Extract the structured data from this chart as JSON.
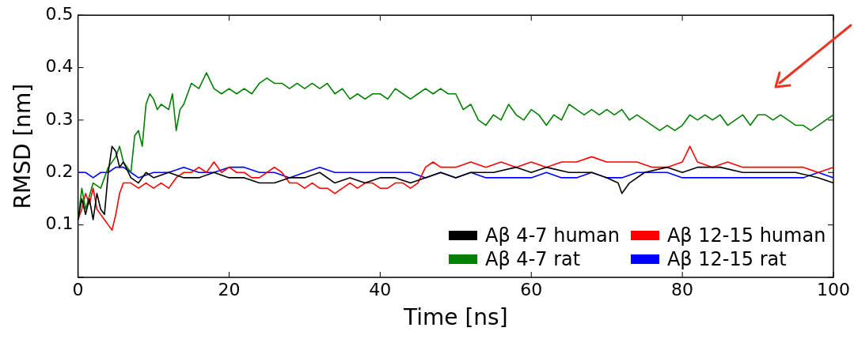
{
  "chart_data": {
    "type": "line",
    "xlabel": "Time [ns]",
    "ylabel": "RMSD [nm]",
    "xlim": [
      0,
      100
    ],
    "ylim": [
      0,
      0.5
    ],
    "xticks": [
      0,
      20,
      40,
      60,
      80,
      100
    ],
    "yticks": [
      {
        "value": 0,
        "label": null
      },
      0.1,
      0.2,
      0.3,
      0.4,
      0.5
    ],
    "grid": false,
    "legend": "bottom right",
    "marker": "none",
    "line_style": "solid",
    "series": [
      {
        "name": "Aβ 4-7 human",
        "color": "#000000",
        "x": [
          0,
          0.5,
          1,
          1.5,
          2,
          2.5,
          3,
          3.5,
          4,
          4.5,
          5,
          5.5,
          6,
          7,
          8,
          9,
          10,
          12,
          14,
          16,
          18,
          20,
          22,
          24,
          26,
          28,
          30,
          32,
          34,
          36,
          38,
          40,
          42,
          44,
          46,
          48,
          50,
          52,
          55,
          58,
          60,
          62,
          65,
          68,
          70,
          71.5,
          72,
          73,
          75,
          78,
          80,
          82,
          85,
          88,
          90,
          92,
          95,
          98,
          100
        ],
        "values": [
          0.11,
          0.15,
          0.12,
          0.15,
          0.11,
          0.16,
          0.13,
          0.12,
          0.2,
          0.25,
          0.24,
          0.21,
          0.22,
          0.19,
          0.18,
          0.2,
          0.19,
          0.2,
          0.19,
          0.19,
          0.2,
          0.19,
          0.19,
          0.18,
          0.18,
          0.19,
          0.19,
          0.2,
          0.18,
          0.19,
          0.18,
          0.19,
          0.19,
          0.18,
          0.19,
          0.2,
          0.19,
          0.2,
          0.2,
          0.21,
          0.2,
          0.21,
          0.2,
          0.2,
          0.19,
          0.18,
          0.16,
          0.18,
          0.2,
          0.21,
          0.2,
          0.21,
          0.21,
          0.2,
          0.2,
          0.2,
          0.2,
          0.19,
          0.18
        ]
      },
      {
        "name": "Aβ 4-7 rat",
        "color": "#007f00",
        "x": [
          0,
          0.5,
          1,
          2,
          3,
          4,
          5,
          5.5,
          6,
          7,
          7.5,
          8,
          8.5,
          9,
          9.5,
          10,
          10.5,
          11,
          12,
          12.5,
          13,
          13.5,
          14,
          15,
          16,
          17,
          18,
          19,
          20,
          21,
          22,
          23,
          24,
          25,
          26,
          27,
          28,
          29,
          30,
          31,
          32,
          33,
          34,
          35,
          36,
          37,
          38,
          39,
          40,
          41,
          42,
          43,
          44,
          45,
          46,
          47,
          48,
          49,
          50,
          51,
          52,
          53,
          54,
          55,
          56,
          57,
          58,
          59,
          60,
          61,
          62,
          63,
          64,
          65,
          66,
          67,
          68,
          69,
          70,
          71,
          72,
          73,
          74,
          75,
          76,
          77,
          78,
          79,
          80,
          81,
          82,
          83,
          84,
          85,
          86,
          87,
          88,
          89,
          90,
          91,
          92,
          93,
          94,
          95,
          96,
          97,
          98,
          99,
          100
        ],
        "values": [
          0.11,
          0.17,
          0.13,
          0.18,
          0.17,
          0.21,
          0.23,
          0.25,
          0.22,
          0.2,
          0.27,
          0.28,
          0.25,
          0.33,
          0.35,
          0.34,
          0.32,
          0.33,
          0.32,
          0.35,
          0.28,
          0.32,
          0.33,
          0.37,
          0.36,
          0.39,
          0.36,
          0.35,
          0.36,
          0.35,
          0.36,
          0.35,
          0.37,
          0.38,
          0.37,
          0.37,
          0.36,
          0.37,
          0.36,
          0.37,
          0.36,
          0.37,
          0.35,
          0.36,
          0.34,
          0.35,
          0.34,
          0.35,
          0.35,
          0.34,
          0.36,
          0.35,
          0.34,
          0.35,
          0.36,
          0.35,
          0.36,
          0.35,
          0.35,
          0.32,
          0.33,
          0.3,
          0.29,
          0.31,
          0.3,
          0.33,
          0.31,
          0.3,
          0.32,
          0.31,
          0.29,
          0.31,
          0.3,
          0.33,
          0.32,
          0.31,
          0.32,
          0.31,
          0.32,
          0.31,
          0.32,
          0.3,
          0.31,
          0.3,
          0.29,
          0.28,
          0.29,
          0.28,
          0.29,
          0.31,
          0.3,
          0.31,
          0.3,
          0.31,
          0.29,
          0.3,
          0.31,
          0.29,
          0.31,
          0.31,
          0.3,
          0.31,
          0.3,
          0.29,
          0.29,
          0.28,
          0.29,
          0.3,
          0.31
        ]
      },
      {
        "name": "Aβ 12-15 human",
        "color": "#ff0000",
        "x": [
          0,
          0.5,
          1,
          1.5,
          2,
          2.5,
          3,
          3.5,
          4,
          4.5,
          5,
          5.5,
          6,
          7,
          8,
          9,
          10,
          11,
          12,
          13,
          14,
          15,
          16,
          17,
          18,
          19,
          20,
          21,
          22,
          23,
          24,
          25,
          26,
          27,
          28,
          29,
          30,
          31,
          32,
          33,
          34,
          35,
          36,
          37,
          38,
          39,
          40,
          41,
          42,
          43,
          44,
          45,
          46,
          47,
          48,
          50,
          52,
          54,
          56,
          58,
          60,
          62,
          64,
          66,
          68,
          70,
          72,
          74,
          76,
          78,
          80,
          81,
          82,
          84,
          86,
          88,
          90,
          92,
          94,
          96,
          98,
          100
        ],
        "values": [
          0.11,
          0.13,
          0.16,
          0.14,
          0.17,
          0.13,
          0.12,
          0.11,
          0.1,
          0.09,
          0.12,
          0.16,
          0.18,
          0.18,
          0.17,
          0.18,
          0.17,
          0.18,
          0.17,
          0.19,
          0.2,
          0.2,
          0.21,
          0.2,
          0.22,
          0.2,
          0.21,
          0.2,
          0.2,
          0.19,
          0.19,
          0.2,
          0.21,
          0.2,
          0.18,
          0.18,
          0.17,
          0.18,
          0.17,
          0.17,
          0.16,
          0.17,
          0.18,
          0.17,
          0.18,
          0.18,
          0.17,
          0.17,
          0.18,
          0.18,
          0.17,
          0.18,
          0.21,
          0.22,
          0.21,
          0.21,
          0.22,
          0.21,
          0.22,
          0.21,
          0.22,
          0.21,
          0.22,
          0.22,
          0.23,
          0.22,
          0.22,
          0.22,
          0.21,
          0.21,
          0.22,
          0.25,
          0.22,
          0.21,
          0.22,
          0.21,
          0.21,
          0.21,
          0.21,
          0.21,
          0.2,
          0.21
        ]
      },
      {
        "name": "Aβ 12-15 rat",
        "color": "#0000ff",
        "x": [
          0,
          1,
          2,
          3,
          4,
          5,
          6,
          7,
          8,
          10,
          12,
          14,
          16,
          18,
          20,
          22,
          24,
          26,
          28,
          30,
          32,
          34,
          36,
          38,
          40,
          42,
          44,
          46,
          48,
          50,
          52,
          54,
          56,
          58,
          60,
          62,
          64,
          66,
          68,
          70,
          72,
          74,
          76,
          78,
          80,
          82,
          84,
          86,
          88,
          90,
          92,
          94,
          96,
          98,
          100
        ],
        "values": [
          0.2,
          0.2,
          0.19,
          0.2,
          0.2,
          0.21,
          0.21,
          0.2,
          0.19,
          0.2,
          0.2,
          0.21,
          0.2,
          0.2,
          0.21,
          0.21,
          0.2,
          0.2,
          0.19,
          0.2,
          0.21,
          0.2,
          0.2,
          0.2,
          0.2,
          0.2,
          0.2,
          0.19,
          0.2,
          0.19,
          0.2,
          0.19,
          0.19,
          0.19,
          0.19,
          0.2,
          0.19,
          0.19,
          0.2,
          0.19,
          0.19,
          0.2,
          0.2,
          0.2,
          0.19,
          0.19,
          0.19,
          0.19,
          0.19,
          0.19,
          0.19,
          0.19,
          0.19,
          0.2,
          0.19
        ]
      }
    ]
  }
}
